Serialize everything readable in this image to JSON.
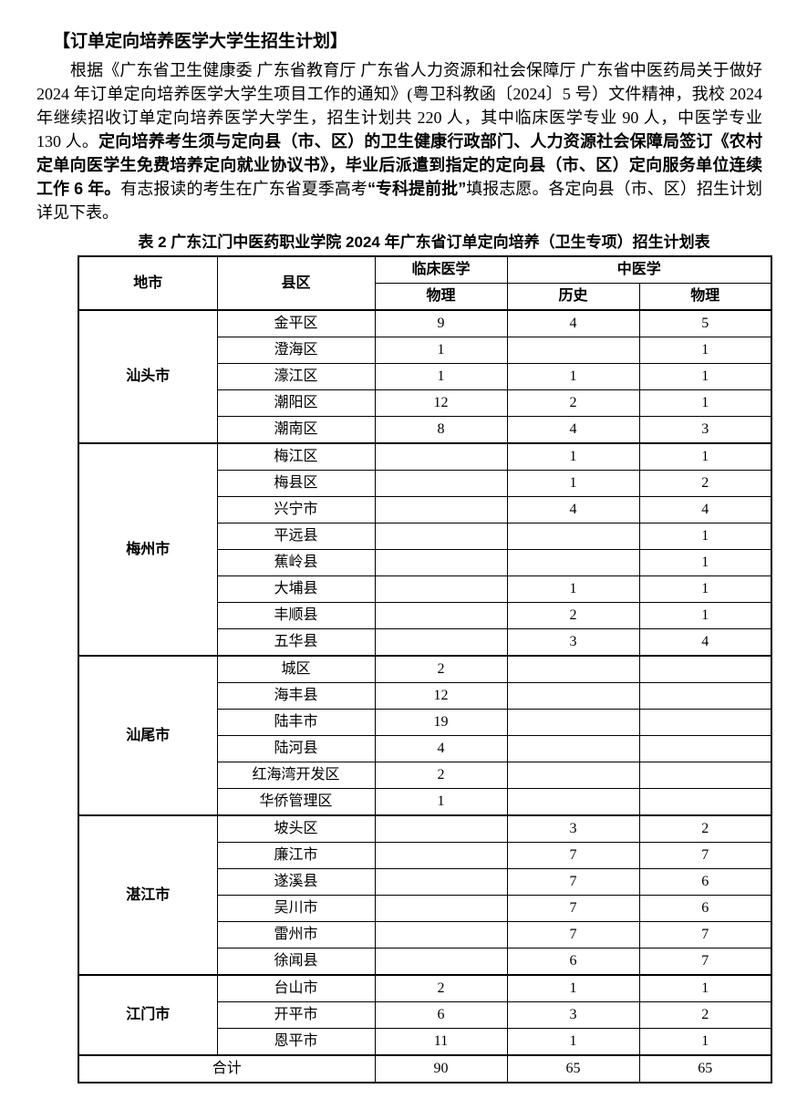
{
  "doc": {
    "title": "【订单定向培养医学大学生招生计划】",
    "paragraph": [
      {
        "text": "根据《广东省卫生健康委 广东省教育厅 广东省人力资源和社会保障厅 广东省中医药局关于做好 2024 年订单定向培养医学大学生项目工作的通知》(粤卫科教函〔2024〕5 号）文件精神，我校 2024 年继续招收订单定向培养医学大学生，招生计划共 220 人，其中临床医学专业 90 人，中医学专业 130 人。",
        "bold": false
      },
      {
        "text": "定向培养考生须与定向县（市、区）的卫生健康行政部门、人力资源社会保障局签订《农村定单向医学生免费培养定向就业协议书》，毕业后派遣到指定的定向县（市、区）定向服务单位连续工作 6 年。",
        "bold": true
      },
      {
        "text": "有志报读的考生在广东省夏季高考",
        "bold": false
      },
      {
        "text": "“专科提前批”",
        "bold": true
      },
      {
        "text": "填报志愿。各定向县（市、区）招生计划详见下表。",
        "bold": false
      }
    ]
  },
  "table": {
    "caption": "表 2 广东江门中医药职业学院 2024 年广东省订单定向培养（卫生专项）招生计划表",
    "headers": {
      "city": "地市",
      "county": "县区",
      "clinical": "临床医学",
      "tcm": "中医学",
      "clinical_physics": "物理",
      "tcm_history": "历史",
      "tcm_physics": "物理"
    },
    "groups": [
      {
        "city": "汕头市",
        "rows": [
          {
            "county": "金平区",
            "values": [
              "9",
              "4",
              "5"
            ]
          },
          {
            "county": "澄海区",
            "values": [
              "1",
              "",
              "1"
            ]
          },
          {
            "county": "濠江区",
            "values": [
              "1",
              "1",
              "1"
            ]
          },
          {
            "county": "潮阳区",
            "values": [
              "12",
              "2",
              "1"
            ]
          },
          {
            "county": "潮南区",
            "values": [
              "8",
              "4",
              "3"
            ]
          }
        ]
      },
      {
        "city": "梅州市",
        "rows": [
          {
            "county": "梅江区",
            "values": [
              "",
              "1",
              "1"
            ]
          },
          {
            "county": "梅县区",
            "values": [
              "",
              "1",
              "2"
            ]
          },
          {
            "county": "兴宁市",
            "values": [
              "",
              "4",
              "4"
            ]
          },
          {
            "county": "平远县",
            "values": [
              "",
              "",
              "1"
            ]
          },
          {
            "county": "蕉岭县",
            "values": [
              "",
              "",
              "1"
            ]
          },
          {
            "county": "大埔县",
            "values": [
              "",
              "1",
              "1"
            ]
          },
          {
            "county": "丰顺县",
            "values": [
              "",
              "2",
              "1"
            ]
          },
          {
            "county": "五华县",
            "values": [
              "",
              "3",
              "4"
            ]
          }
        ]
      },
      {
        "city": "汕尾市",
        "rows": [
          {
            "county": "城区",
            "values": [
              "2",
              "",
              ""
            ]
          },
          {
            "county": "海丰县",
            "values": [
              "12",
              "",
              ""
            ]
          },
          {
            "county": "陆丰市",
            "values": [
              "19",
              "",
              ""
            ]
          },
          {
            "county": "陆河县",
            "values": [
              "4",
              "",
              ""
            ]
          },
          {
            "county": "红海湾开发区",
            "values": [
              "2",
              "",
              ""
            ]
          },
          {
            "county": "华侨管理区",
            "values": [
              "1",
              "",
              ""
            ]
          }
        ]
      },
      {
        "city": "湛江市",
        "rows": [
          {
            "county": "坡头区",
            "values": [
              "",
              "3",
              "2"
            ]
          },
          {
            "county": "廉江市",
            "values": [
              "",
              "7",
              "7"
            ]
          },
          {
            "county": "遂溪县",
            "values": [
              "",
              "7",
              "6"
            ]
          },
          {
            "county": "吴川市",
            "values": [
              "",
              "7",
              "6"
            ]
          },
          {
            "county": "雷州市",
            "values": [
              "",
              "7",
              "7"
            ]
          },
          {
            "county": "徐闻县",
            "values": [
              "",
              "6",
              "7"
            ]
          }
        ]
      },
      {
        "city": "江门市",
        "rows": [
          {
            "county": "台山市",
            "values": [
              "2",
              "1",
              "1"
            ]
          },
          {
            "county": "开平市",
            "values": [
              "6",
              "3",
              "2"
            ]
          },
          {
            "county": "恩平市",
            "values": [
              "11",
              "1",
              "1"
            ]
          }
        ]
      }
    ],
    "total": {
      "label": "合计",
      "values": [
        "90",
        "65",
        "65"
      ]
    }
  }
}
